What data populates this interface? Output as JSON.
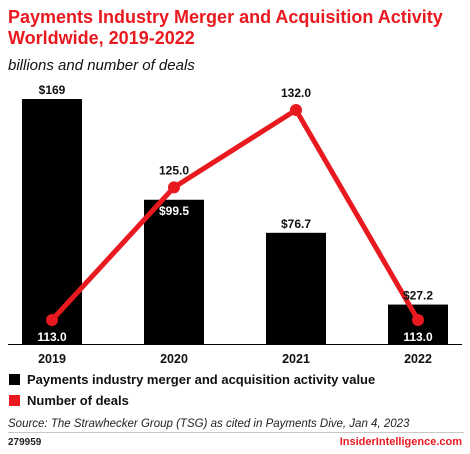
{
  "title": "Payments Industry Merger and Acquisition Activity Worldwide, 2019-2022",
  "subtitle": "billions and number of deals",
  "chart_data": {
    "type": "bar",
    "categories": [
      "2019",
      "2020",
      "2021",
      "2022"
    ],
    "series": [
      {
        "name": "Payments industry merger and acquisition activity value",
        "type": "bar",
        "values": [
          169,
          99.5,
          76.7,
          27.2
        ],
        "labels": [
          "$169",
          "$99.5",
          "$76.7",
          "$27.2"
        ],
        "color": "#000000"
      },
      {
        "name": "Number of deals",
        "type": "line",
        "values": [
          113.0,
          125.0,
          132.0,
          113.0
        ],
        "labels": [
          "113.0",
          "125.0",
          "132.0",
          "113.0"
        ],
        "color": "#e8191f"
      }
    ],
    "legend_position": "bottom-left"
  },
  "source": "Source: The Strawhecker Group (TSG) as cited in Payments Dive, Jan 4, 2023",
  "chart_id": "279959",
  "brand": "InsiderIntelligence.com"
}
